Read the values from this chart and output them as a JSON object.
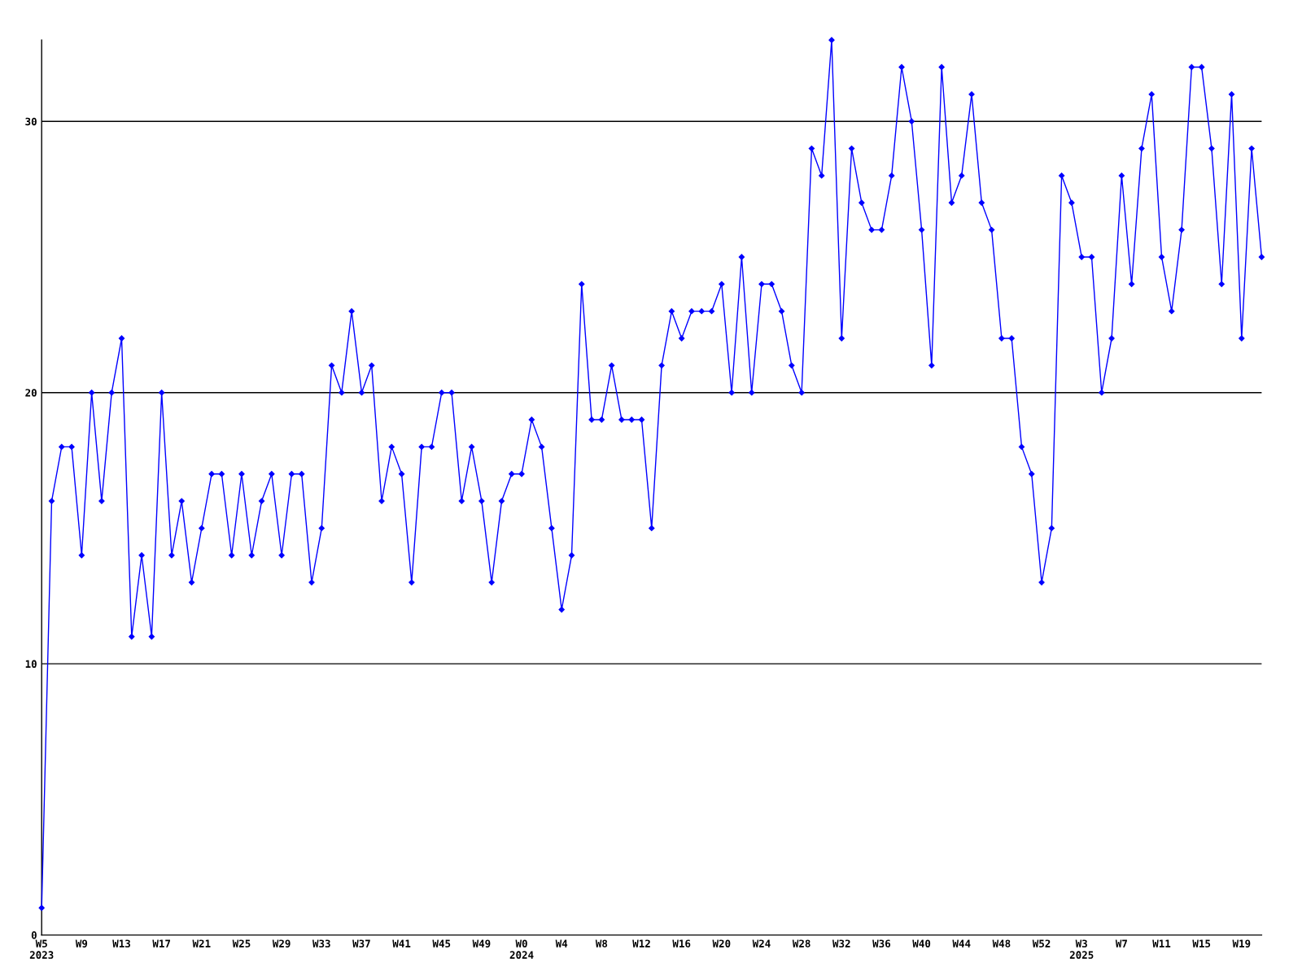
{
  "chart_data": {
    "type": "line",
    "categories": [
      "W5\n2023",
      null,
      null,
      null,
      "W9",
      null,
      null,
      null,
      "W13",
      null,
      null,
      null,
      "W17",
      null,
      null,
      null,
      "W21",
      null,
      null,
      null,
      "W25",
      null,
      null,
      null,
      "W29",
      null,
      null,
      null,
      "W33",
      null,
      null,
      null,
      "W37",
      null,
      null,
      null,
      "W41",
      null,
      null,
      null,
      "W45",
      null,
      null,
      null,
      "W49",
      null,
      null,
      null,
      "W0\n2024",
      null,
      null,
      null,
      "W4",
      null,
      null,
      null,
      "W8",
      null,
      null,
      null,
      "W12",
      null,
      null,
      null,
      "W16",
      null,
      null,
      null,
      "W20",
      null,
      null,
      null,
      "W24",
      null,
      null,
      null,
      "W28",
      null,
      null,
      null,
      "W32",
      null,
      null,
      null,
      "W36",
      null,
      null,
      null,
      "W40",
      null,
      null,
      null,
      "W44",
      null,
      null,
      null,
      "W48",
      null,
      null,
      null,
      "W52",
      null,
      null,
      null,
      "W3\n2025",
      null,
      null,
      null,
      "W7",
      null,
      null,
      null,
      "W11",
      null,
      null,
      null,
      "W15",
      null,
      null,
      null,
      "W19",
      null,
      null
    ],
    "series": [
      {
        "color": "#0000ff",
        "values": [
          1,
          16,
          18,
          18,
          14,
          20,
          16,
          20,
          22,
          11,
          14,
          11,
          20,
          14,
          16,
          13,
          15,
          17,
          17,
          14,
          17,
          14,
          16,
          17,
          14,
          17,
          17,
          13,
          15,
          21,
          20,
          23,
          20,
          21,
          16,
          18,
          17,
          13,
          18,
          18,
          20,
          20,
          16,
          18,
          16,
          13,
          16,
          17,
          17,
          19,
          18,
          15,
          12,
          14,
          24,
          19,
          19,
          21,
          19,
          19,
          19,
          15,
          21,
          23,
          22,
          23,
          23,
          23,
          24,
          20,
          25,
          20,
          24,
          24,
          23,
          21,
          20,
          29,
          28,
          33,
          22,
          29,
          27,
          26,
          26,
          28,
          32,
          30,
          26,
          21,
          32,
          27,
          28,
          31,
          27,
          26,
          22,
          22,
          18,
          17,
          13,
          15,
          28,
          27,
          25,
          25,
          20,
          22,
          28,
          24,
          29,
          31,
          25,
          23,
          26,
          32,
          32,
          29,
          24,
          31,
          22,
          29,
          25
        ]
      }
    ],
    "ylim": [
      0,
      33
    ],
    "yticks": [
      0,
      10,
      20,
      30
    ],
    "grid": "y",
    "marker": "diamond",
    "line_style": "solid"
  }
}
